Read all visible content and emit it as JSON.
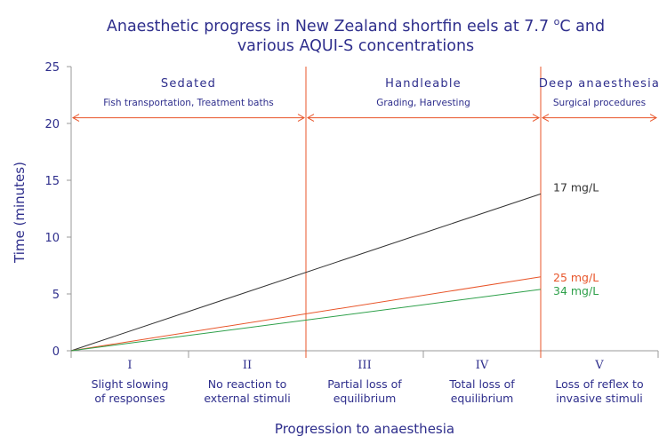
{
  "chart_data": {
    "type": "line",
    "title_lines": [
      "Anaesthetic progress in New Zealand shortfin eels at 7.7 °C and",
      "various AQUI-S concentrations"
    ],
    "title_prefix": "Anaesthetic progress in New Zealand shortfin eels at 7.7 ",
    "title_degree": "o",
    "title_suffix": "C and",
    "title_line2": "various AQUI-S concentrations",
    "ylabel": "Time (minutes)",
    "xlabel": "Progression to anaesthesia",
    "ylim": [
      0,
      25
    ],
    "yticks": [
      "0",
      "5",
      "10",
      "15",
      "20",
      "25"
    ],
    "xlim": [
      0,
      5
    ],
    "stage_numerals": [
      "I",
      "II",
      "III",
      "IV",
      "V"
    ],
    "stage_descriptions": [
      {
        "line1": "Slight slowing",
        "line2": "of responses"
      },
      {
        "line1": "No reaction to",
        "line2": "external stimuli"
      },
      {
        "line1": "Partial loss of",
        "line2": "equilibrium"
      },
      {
        "line1": "Total loss of",
        "line2": "equilibrium"
      },
      {
        "line1": "Loss of reflex to",
        "line2": "invasive stimuli"
      }
    ],
    "phases": [
      {
        "name": "Sedated",
        "activities": "Fish transportation, Treatment baths",
        "from": 0,
        "to": 2
      },
      {
        "name": "Handleable",
        "activities": "Grading, Harvesting",
        "from": 2,
        "to": 4
      },
      {
        "name": "Deep anaesthesia",
        "activities": "Surgical procedures",
        "from": 4,
        "to": 5
      }
    ],
    "phase_boundaries": [
      2,
      4
    ],
    "series": [
      {
        "name": "17 mg/L",
        "color": "#333333",
        "x": [
          0,
          4
        ],
        "y": [
          0,
          13.8
        ]
      },
      {
        "name": "25 mg/L",
        "color": "#e8552a",
        "x": [
          0,
          4
        ],
        "y": [
          0,
          6.5
        ]
      },
      {
        "name": "34 mg/L",
        "color": "#2ea04a",
        "x": [
          0,
          4
        ],
        "y": [
          0,
          5.4
        ]
      }
    ],
    "colors": {
      "text": "#2e2e8c",
      "axis": "#9a9a9a",
      "phase_line": "#e8552a"
    }
  }
}
